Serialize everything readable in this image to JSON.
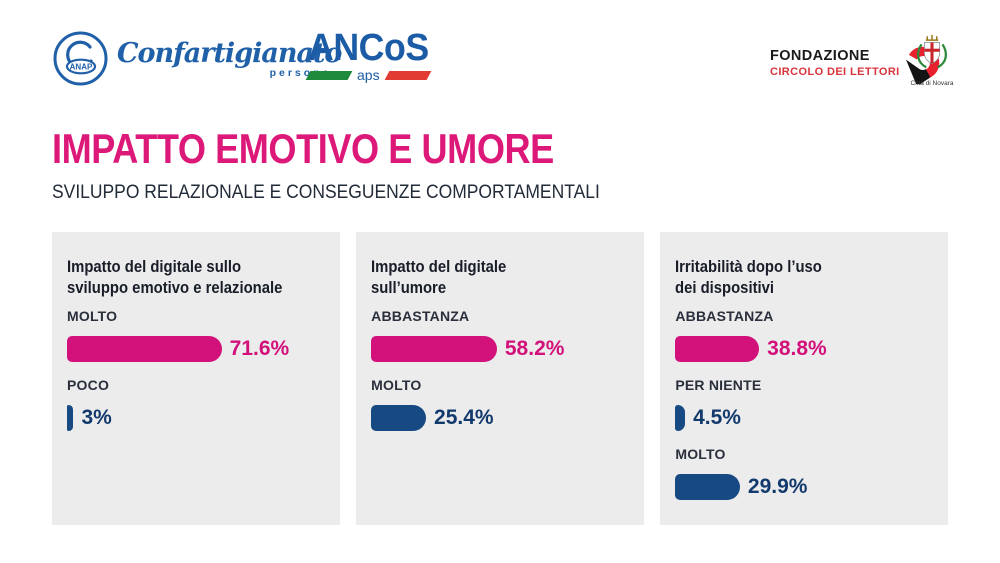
{
  "header": {
    "logos": {
      "anap": {
        "badge_text": "ANAP",
        "brand": "Confartigianato",
        "sub": "persone"
      },
      "ancos": {
        "brand": "ANCoS",
        "sub": "aps"
      },
      "fondazione": {
        "line1": "FONDAZIONE",
        "line2": "CIRCOLO DEI LETTORI"
      },
      "novara": {
        "caption": "Città di Novara"
      }
    },
    "title": "IMPATTO EMOTIVO E UMORE",
    "subtitle": "SVILUPPO RELAZIONALE E CONSEGUENZE COMPORTAMENTALI"
  },
  "colors": {
    "magenta_bar": "#D2117B",
    "magenta_text": "#D2117B",
    "navy_bar": "#174A82",
    "navy_text": "#123A6D",
    "title_pink": "#DC1879",
    "panel_bg": "#ECECEC"
  },
  "chart_data": [
    {
      "type": "bar",
      "title": "Impatto del digitale sullo\nsviluppo emotivo e relazionale",
      "categories": [
        "MOLTO",
        "POCO"
      ],
      "values": [
        71.6,
        3
      ],
      "value_labels": [
        "71.6%",
        "3%"
      ],
      "bar_colors": [
        "magenta",
        "navy"
      ],
      "xlabel": "",
      "ylabel": "",
      "unit": "%",
      "axis_max": 100,
      "grid": false,
      "legend": false
    },
    {
      "type": "bar",
      "title": "Impatto del digitale\nsull’umore",
      "categories": [
        "ABBASTANZA",
        "MOLTO"
      ],
      "values": [
        58.2,
        25.4
      ],
      "value_labels": [
        "58.2%",
        "25.4%"
      ],
      "bar_colors": [
        "magenta",
        "navy"
      ],
      "xlabel": "",
      "ylabel": "",
      "unit": "%",
      "axis_max": 100,
      "grid": false,
      "legend": false
    },
    {
      "type": "bar",
      "title": "Irritabilità dopo l’uso\ndei dispositivi",
      "categories": [
        "ABBASTANZA",
        "PER NIENTE",
        "MOLTO"
      ],
      "values": [
        38.8,
        4.5,
        29.9
      ],
      "value_labels": [
        "38.8%",
        "4.5%",
        "29.9%"
      ],
      "bar_colors": [
        "magenta",
        "navy",
        "navy"
      ],
      "xlabel": "",
      "ylabel": "",
      "unit": "%",
      "axis_max": 100,
      "grid": false,
      "legend": false
    }
  ]
}
